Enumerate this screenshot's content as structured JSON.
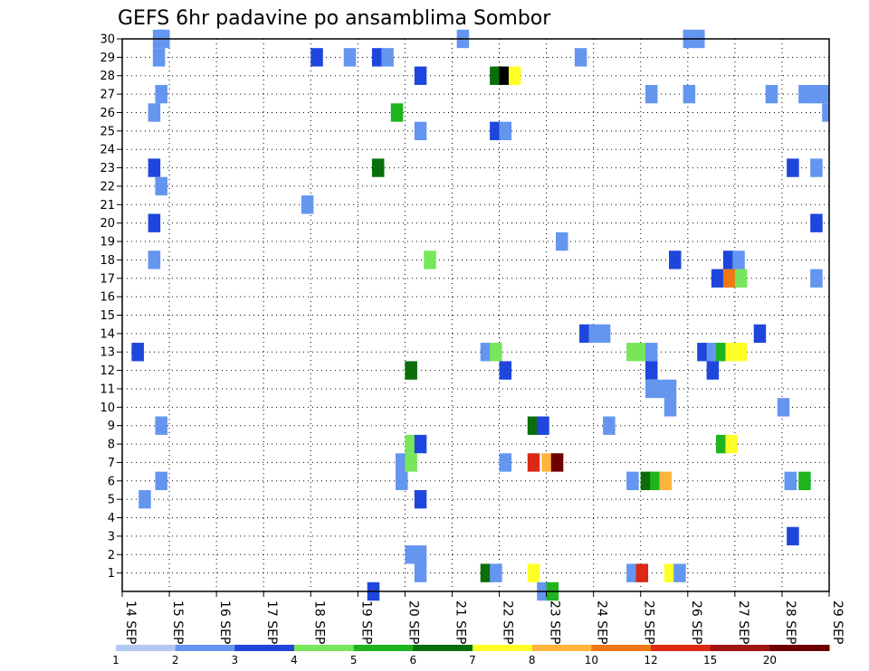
{
  "chart_data": {
    "type": "heatmap",
    "title": "GEFS 6hr padavine po ansamblima Sombor",
    "x_ticks": [
      "14 SEP",
      "15 SEP",
      "16 SEP",
      "17 SEP",
      "18 SEP",
      "19 SEP",
      "20 SEP",
      "21 SEP",
      "22 SEP",
      "23 SEP",
      "24 SEP",
      "25 SEP",
      "26 SEP",
      "27 SEP",
      "28 SEP",
      "29 SEP"
    ],
    "y_ticks": [
      "1",
      "2",
      "3",
      "4",
      "5",
      "6",
      "7",
      "8",
      "9",
      "10",
      "11",
      "12",
      "13",
      "14",
      "15",
      "16",
      "17",
      "18",
      "19",
      "20",
      "21",
      "22",
      "23",
      "24",
      "25",
      "26",
      "27",
      "28",
      "29",
      "30"
    ],
    "grid": true,
    "legend": {
      "position": "bottom",
      "colors": [
        "#b4c8f5",
        "#6496f0",
        "#1e46dc",
        "#78e65a",
        "#1eb41e",
        "#0a6e0a",
        "#ffff28",
        "#ffb43c",
        "#f07814",
        "#dc2814",
        "#a01414",
        "#6e0000"
      ],
      "labels": [
        "1",
        "2",
        "3",
        "4",
        "5",
        "6",
        "7",
        "8",
        "10",
        "12",
        "15",
        "20"
      ]
    },
    "cells": [
      [
        0.2,
        13,
        2
      ],
      [
        0.35,
        5,
        1
      ],
      [
        0.65,
        30,
        1
      ],
      [
        0.75,
        30,
        1
      ],
      [
        0.65,
        29,
        1
      ],
      [
        0.55,
        26,
        1
      ],
      [
        0.7,
        27,
        1
      ],
      [
        0.55,
        23,
        2
      ],
      [
        0.7,
        22,
        1
      ],
      [
        0.55,
        20,
        2
      ],
      [
        0.55,
        18,
        1
      ],
      [
        0.7,
        9,
        1
      ],
      [
        0.7,
        6,
        1
      ],
      [
        3.8,
        21,
        1
      ],
      [
        4.0,
        29,
        2
      ],
      [
        4.7,
        29,
        1
      ],
      [
        5.2,
        0,
        2
      ],
      [
        5.3,
        29,
        2
      ],
      [
        5.5,
        29,
        1
      ],
      [
        5.3,
        23,
        5
      ],
      [
        5.7,
        26,
        4
      ],
      [
        5.8,
        7,
        1
      ],
      [
        5.8,
        6,
        1
      ],
      [
        6.0,
        2,
        1
      ],
      [
        6.2,
        2,
        1
      ],
      [
        6.2,
        1,
        1
      ],
      [
        6.2,
        28,
        2
      ],
      [
        6.2,
        25,
        1
      ],
      [
        6.0,
        12,
        5
      ],
      [
        6.0,
        8,
        3
      ],
      [
        6.2,
        8,
        2
      ],
      [
        6.0,
        7,
        3
      ],
      [
        6.2,
        5,
        2
      ],
      [
        6.4,
        18,
        3
      ],
      [
        7.1,
        30,
        1
      ],
      [
        7.6,
        1,
        5
      ],
      [
        7.8,
        1,
        1
      ],
      [
        7.6,
        13,
        1
      ],
      [
        7.8,
        13,
        3
      ],
      [
        7.8,
        28,
        5
      ],
      [
        7.8,
        25,
        2
      ],
      [
        8.0,
        25,
        1
      ],
      [
        8.0,
        28,
        12
      ],
      [
        8.2,
        28,
        6
      ],
      [
        8.0,
        12,
        2
      ],
      [
        8.0,
        7,
        1
      ],
      [
        8.6,
        9,
        5
      ],
      [
        8.8,
        9,
        2
      ],
      [
        8.6,
        7,
        9
      ],
      [
        8.9,
        7,
        7
      ],
      [
        9.1,
        7,
        11
      ],
      [
        8.6,
        1,
        6
      ],
      [
        8.8,
        0,
        1
      ],
      [
        9.0,
        0,
        4
      ],
      [
        9.2,
        19,
        1
      ],
      [
        9.6,
        29,
        1
      ],
      [
        9.7,
        14,
        2
      ],
      [
        9.9,
        14,
        1
      ],
      [
        10.1,
        14,
        1
      ],
      [
        10.2,
        9,
        1
      ],
      [
        10.7,
        13,
        3
      ],
      [
        10.9,
        13,
        3
      ],
      [
        11.1,
        13,
        1
      ],
      [
        11.1,
        12,
        2
      ],
      [
        11.1,
        11,
        1
      ],
      [
        11.3,
        11,
        1
      ],
      [
        11.5,
        11,
        1
      ],
      [
        11.5,
        10,
        1
      ],
      [
        11.1,
        27,
        1
      ],
      [
        10.7,
        6,
        1
      ],
      [
        11.0,
        6,
        5
      ],
      [
        11.2,
        6,
        4
      ],
      [
        11.4,
        6,
        7
      ],
      [
        10.7,
        1,
        1
      ],
      [
        10.9,
        1,
        9
      ],
      [
        11.5,
        1,
        6
      ],
      [
        11.7,
        1,
        1
      ],
      [
        11.6,
        18,
        2
      ],
      [
        11.9,
        27,
        1
      ],
      [
        11.9,
        30,
        1
      ],
      [
        12.1,
        30,
        1
      ],
      [
        12.2,
        13,
        2
      ],
      [
        12.4,
        13,
        1
      ],
      [
        12.4,
        12,
        2
      ],
      [
        12.6,
        13,
        4
      ],
      [
        12.8,
        13,
        6
      ],
      [
        13.0,
        13,
        6
      ],
      [
        12.5,
        17,
        2
      ],
      [
        12.75,
        17,
        8
      ],
      [
        13.0,
        17,
        3
      ],
      [
        12.75,
        18,
        2
      ],
      [
        12.95,
        18,
        1
      ],
      [
        13.4,
        14,
        2
      ],
      [
        12.6,
        8,
        4
      ],
      [
        12.8,
        8,
        6
      ],
      [
        13.65,
        27,
        1
      ],
      [
        13.9,
        10,
        1
      ],
      [
        14.1,
        23,
        2
      ],
      [
        14.1,
        3,
        2
      ],
      [
        14.05,
        6,
        1
      ],
      [
        14.35,
        6,
        4
      ],
      [
        14.35,
        27,
        1
      ],
      [
        14.55,
        27,
        1
      ],
      [
        14.75,
        27,
        1
      ],
      [
        14.6,
        23,
        1
      ],
      [
        14.6,
        20,
        2
      ],
      [
        14.6,
        17,
        1
      ],
      [
        14.85,
        26,
        1
      ]
    ]
  }
}
